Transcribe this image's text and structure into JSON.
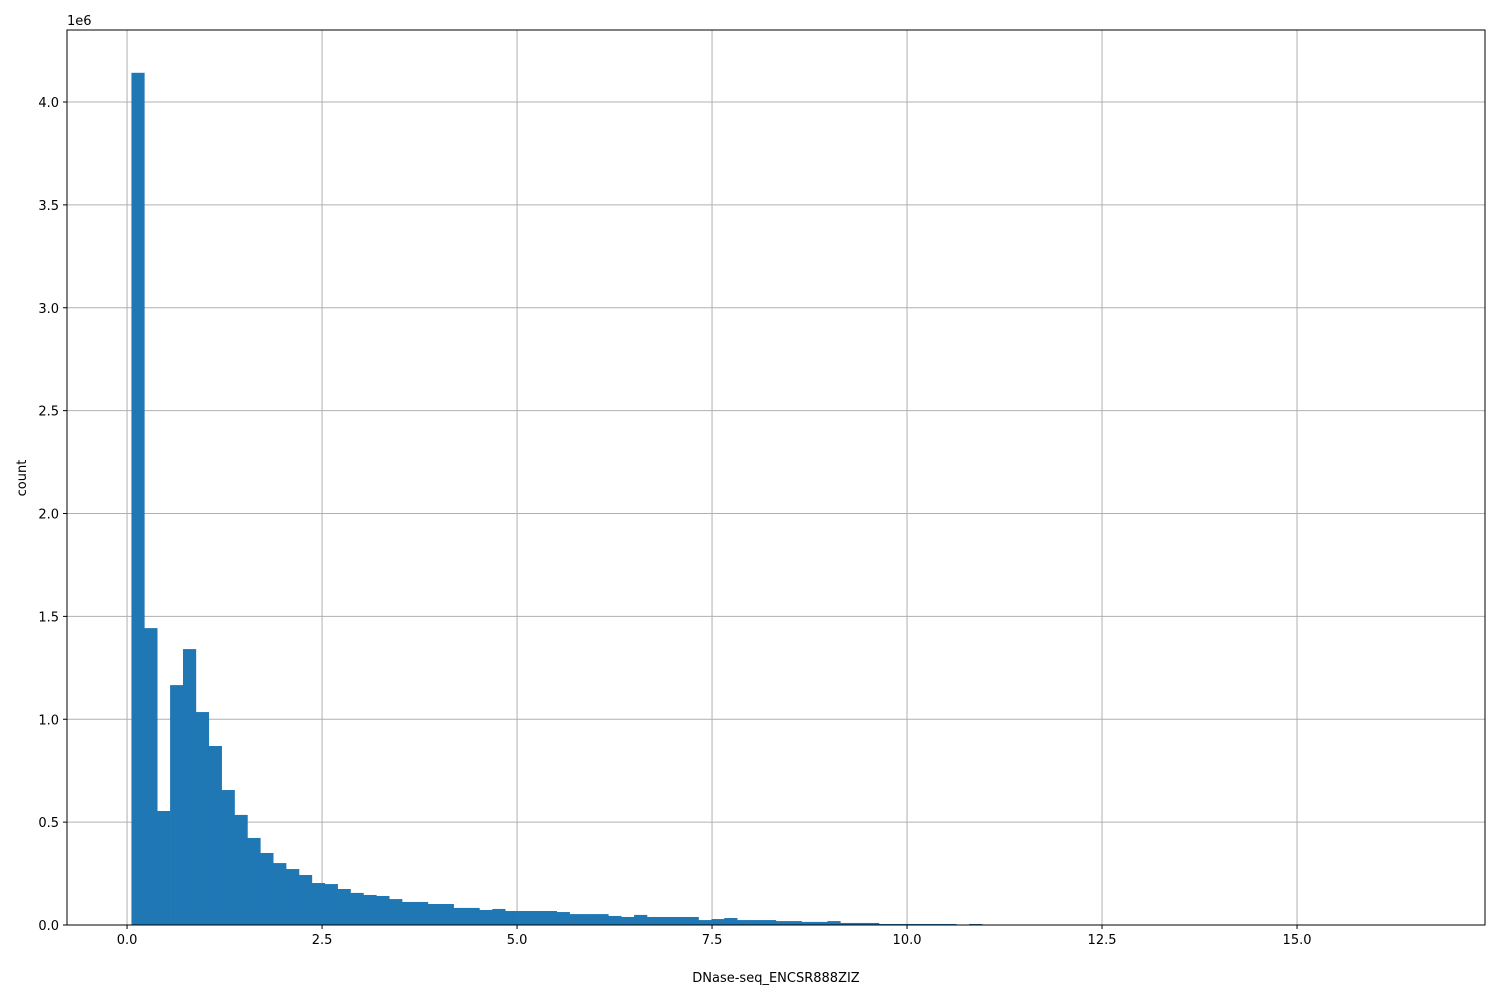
{
  "chart_data": {
    "type": "bar",
    "subtype": "histogram",
    "title": "",
    "xlabel": "DNase-seq_ENCSR888ZIZ",
    "ylabel": "count",
    "y_offset_label": "1e6",
    "xlim": [
      -0.77,
      17.41
    ],
    "ylim": [
      0,
      4350000
    ],
    "bin_range": [
      0.056,
      16.58
    ],
    "bins": 100,
    "grid": true,
    "bar_color": "#1f77b4",
    "grid_color": "#b0b0b0",
    "x_ticks": [
      0.0,
      2.5,
      5.0,
      7.5,
      10.0,
      12.5,
      15.0
    ],
    "x_tick_labels": [
      "0.0",
      "2.5",
      "5.0",
      "7.5",
      "10.0",
      "12.5",
      "15.0"
    ],
    "y_ticks": [
      0,
      500000,
      1000000,
      1500000,
      2000000,
      2500000,
      3000000,
      3500000,
      4000000
    ],
    "y_tick_labels": [
      "0.0",
      "0.5",
      "1.0",
      "1.5",
      "2.0",
      "2.5",
      "3.0",
      "3.5",
      "4.0"
    ],
    "values": [
      4142000,
      1443000,
      554000,
      1166000,
      1341000,
      1035000,
      870000,
      656000,
      535000,
      423000,
      350000,
      301000,
      272000,
      243000,
      204000,
      199000,
      175000,
      156000,
      146000,
      141000,
      126000,
      112000,
      112000,
      102000,
      102000,
      83000,
      83000,
      73000,
      78000,
      68000,
      68000,
      68000,
      68000,
      63000,
      53000,
      53000,
      53000,
      44000,
      39000,
      49000,
      39000,
      39000,
      39000,
      39000,
      24000,
      29000,
      34000,
      24000,
      24000,
      24000,
      19000,
      19000,
      15000,
      15000,
      19000,
      10000,
      10000,
      10000,
      5000,
      5000,
      5000,
      5000,
      5000,
      5000,
      1000,
      5000,
      0,
      0,
      0,
      0,
      0,
      0,
      0,
      0,
      0,
      0,
      0,
      0,
      0,
      0,
      0,
      0,
      0,
      0,
      0,
      0,
      0,
      0,
      0,
      0,
      0,
      0,
      0,
      0,
      0,
      0,
      0,
      0,
      0,
      0
    ]
  }
}
